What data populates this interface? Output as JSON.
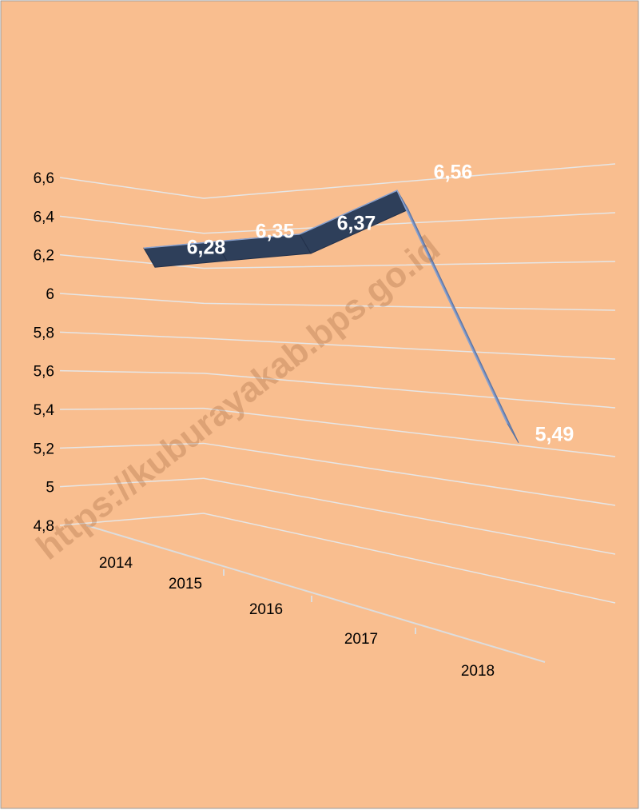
{
  "chart_data": {
    "type": "line3d",
    "categories": [
      "2014",
      "2015",
      "2016",
      "2017",
      "2018"
    ],
    "values": [
      6.28,
      6.35,
      6.37,
      6.56,
      5.49
    ],
    "value_labels": [
      "6,28",
      "6,35",
      "6,37",
      "6,56",
      "5,49"
    ],
    "ylim": [
      4.8,
      6.6
    ],
    "yticks": [
      {
        "value": 4.8,
        "label": "4,8"
      },
      5,
      {
        "value": 5.2,
        "label": "5,2"
      },
      {
        "value": 5.4,
        "label": "5,4"
      },
      {
        "value": 5.6,
        "label": "5,6"
      },
      {
        "value": 5.8,
        "label": "5,8"
      },
      6,
      {
        "value": 6.2,
        "label": "6,2"
      },
      {
        "value": 6.4,
        "label": "6,4"
      },
      {
        "value": 6.6,
        "label": "6,6"
      }
    ],
    "grid": true,
    "colors": [
      "#2e3f5a",
      "#7189b9"
    ],
    "watermark": "https://kuburayakab.bps.go.id"
  }
}
